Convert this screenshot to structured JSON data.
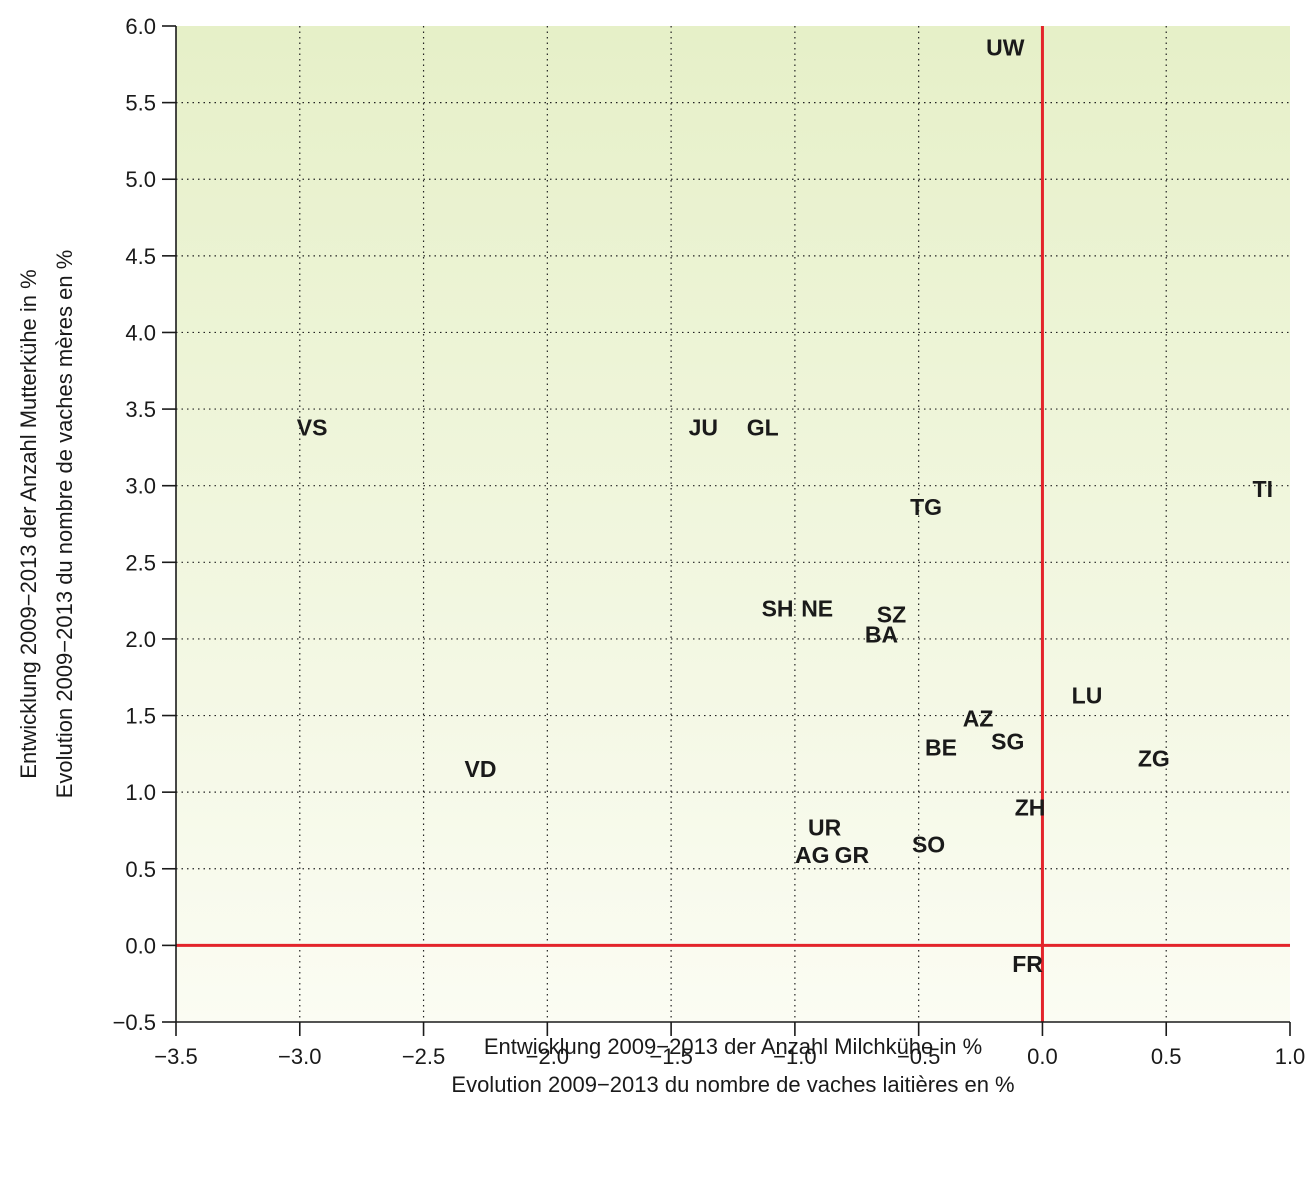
{
  "chart_data": {
    "type": "scatter",
    "title": "",
    "xlabel": "Entwicklung 2009−2013 der Anzahl Milchkühe in %",
    "xlabel_fr": "Evolution 2009−2013 du nombre de vaches laitières en %",
    "ylabel": "Entwicklung 2009−2013 der Anzahl Mutterkühe in %",
    "ylabel_fr": "Evolution 2009−2013 du nombre de vaches mères en %",
    "xlim": [
      -3.5,
      1.0
    ],
    "ylim": [
      -0.5,
      6.0
    ],
    "x_ticks": [
      -3.5,
      -3.0,
      -2.5,
      -2.0,
      -1.5,
      -1.0,
      -0.5,
      0.0,
      0.5,
      1.0
    ],
    "x_tick_labels": [
      "−3.5",
      "−3.0",
      "−2.5",
      "−2.0",
      "−1.5",
      "−1.0",
      "−0.5",
      "0.0",
      "0.5",
      "1.0"
    ],
    "y_ticks": [
      -0.5,
      0.0,
      0.5,
      1.0,
      1.5,
      2.0,
      2.5,
      3.0,
      3.5,
      4.0,
      4.5,
      5.0,
      5.5,
      6.0
    ],
    "y_tick_labels": [
      "−0.5",
      "0.0",
      "0.5",
      "1.0",
      "1.5",
      "2.0",
      "2.5",
      "3.0",
      "3.5",
      "4.0",
      "4.5",
      "5.0",
      "5.5",
      "6.0"
    ],
    "grid": true,
    "reference_lines": {
      "x": 0.0,
      "y": 0.0,
      "color": "#e3242b"
    },
    "background_gradient": {
      "top": "#e6f0c8",
      "bottom": "#fbfcf3"
    },
    "points": [
      {
        "label": "UW",
        "x": -0.15,
        "y": 5.86
      },
      {
        "label": "VS",
        "x": -2.95,
        "y": 3.38
      },
      {
        "label": "JU",
        "x": -1.37,
        "y": 3.38
      },
      {
        "label": "GL",
        "x": -1.13,
        "y": 3.38
      },
      {
        "label": "TI",
        "x": 0.89,
        "y": 2.98
      },
      {
        "label": "TG",
        "x": -0.47,
        "y": 2.86
      },
      {
        "label": "SH",
        "x": -1.07,
        "y": 2.2
      },
      {
        "label": "NE",
        "x": -0.91,
        "y": 2.2
      },
      {
        "label": "SZ",
        "x": -0.61,
        "y": 2.16
      },
      {
        "label": "BA",
        "x": -0.65,
        "y": 2.03
      },
      {
        "label": "LU",
        "x": 0.18,
        "y": 1.63
      },
      {
        "label": "AZ",
        "x": -0.26,
        "y": 1.48
      },
      {
        "label": "SG",
        "x": -0.14,
        "y": 1.33
      },
      {
        "label": "BE",
        "x": -0.41,
        "y": 1.29
      },
      {
        "label": "ZG",
        "x": 0.45,
        "y": 1.22
      },
      {
        "label": "VD",
        "x": -2.27,
        "y": 1.15
      },
      {
        "label": "ZH",
        "x": -0.05,
        "y": 0.9
      },
      {
        "label": "UR",
        "x": -0.88,
        "y": 0.77
      },
      {
        "label": "SO",
        "x": -0.46,
        "y": 0.66
      },
      {
        "label": "AG",
        "x": -0.93,
        "y": 0.59
      },
      {
        "label": "GR",
        "x": -0.77,
        "y": 0.59
      },
      {
        "label": "FR",
        "x": -0.06,
        "y": -0.12
      }
    ]
  }
}
